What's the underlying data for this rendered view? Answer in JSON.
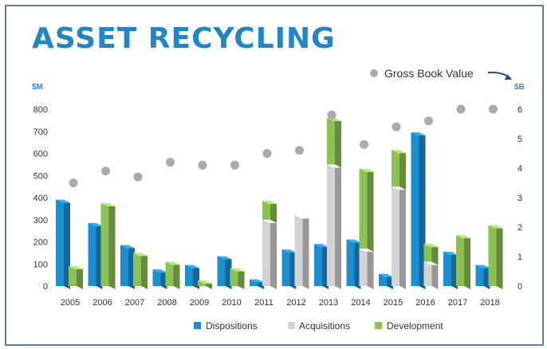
{
  "chart_data": {
    "type": "bar",
    "title": "ASSET RECYCLING",
    "left_axis_unit": "$M",
    "right_axis_unit": "$B",
    "left_ylim": [
      0,
      800
    ],
    "right_ylim": [
      0,
      6
    ],
    "left_ticks": [
      0,
      100,
      200,
      300,
      400,
      500,
      600,
      700,
      800
    ],
    "right_ticks": [
      0,
      1,
      2,
      3,
      4,
      5,
      6
    ],
    "grid": false,
    "legend_position": "bottom",
    "categories": [
      "2005",
      "2006",
      "2007",
      "2008",
      "2009",
      "2010",
      "2011",
      "2012",
      "2013",
      "2014",
      "2015",
      "2016",
      "2017",
      "2018"
    ],
    "series": [
      {
        "name": "Dispositions",
        "color": "#1c8fd1",
        "axis": "left",
        "values": [
          390,
          285,
          185,
          75,
          95,
          135,
          30,
          165,
          190,
          210,
          55,
          695,
          155,
          95
        ]
      },
      {
        "name": "Acquisitions",
        "color": "#d3d3d3",
        "axis": "left",
        "values": [
          0,
          0,
          0,
          0,
          0,
          0,
          300,
          320,
          550,
          170,
          450,
          110,
          0,
          0
        ]
      },
      {
        "name": "Development",
        "color": "#8cc153",
        "axis": "left",
        "values": [
          90,
          375,
          150,
          110,
          25,
          80,
          85,
          0,
          210,
          360,
          165,
          80,
          230,
          275
        ]
      }
    ],
    "gross_book_value": {
      "name": "Gross Book Value",
      "color": "#aaaaaa",
      "axis": "right",
      "values": [
        3.5,
        3.9,
        3.7,
        4.2,
        4.1,
        4.1,
        4.5,
        4.6,
        5.8,
        4.8,
        5.4,
        5.6,
        6.0,
        6.0
      ]
    }
  }
}
